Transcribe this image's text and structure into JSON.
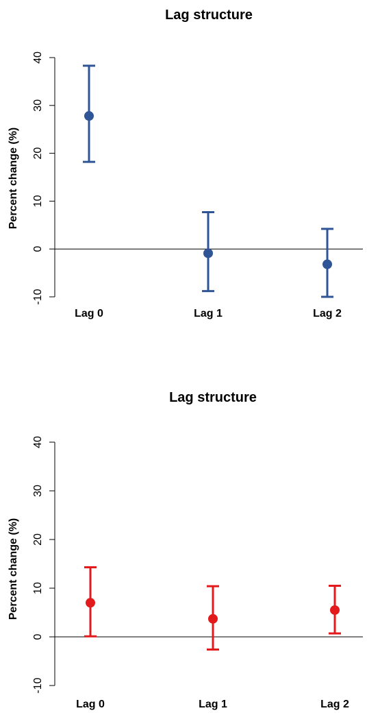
{
  "chart_data": [
    {
      "type": "errorbar",
      "title": "Lag structure",
      "xlabel": "",
      "ylabel": "Percent change (%)",
      "categories": [
        "Lag 0",
        "Lag 1",
        "Lag 2"
      ],
      "ylim": [
        -10,
        40
      ],
      "yticks": [
        -10,
        0,
        10,
        20,
        30,
        40
      ],
      "reference_line": 0,
      "grid": false,
      "color": "#2f5597",
      "series": [
        {
          "values": [
            27.8,
            -0.9,
            -3.2
          ],
          "lower": [
            18.2,
            -8.8,
            -10.0
          ],
          "upper": [
            38.3,
            7.7,
            4.2
          ]
        }
      ]
    },
    {
      "type": "errorbar",
      "title": "Lag structure",
      "xlabel": "",
      "ylabel": "Percent change (%)",
      "categories": [
        "Lag 0",
        "Lag 1",
        "Lag 2"
      ],
      "ylim": [
        -10,
        40
      ],
      "yticks": [
        -10,
        0,
        10,
        20,
        30,
        40
      ],
      "reference_line": 0,
      "grid": false,
      "color": "#e31a1c",
      "series": [
        {
          "values": [
            7.0,
            3.7,
            5.5
          ],
          "lower": [
            0.1,
            -2.6,
            0.7
          ],
          "upper": [
            14.3,
            10.4,
            10.5
          ]
        }
      ]
    }
  ]
}
